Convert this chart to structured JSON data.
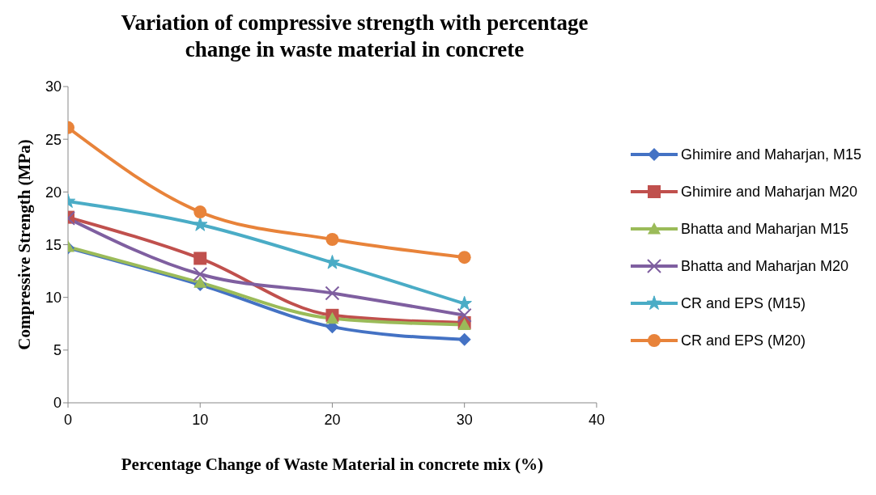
{
  "chart_data": {
    "type": "line",
    "title": "Variation of compressive strength with percentage change in waste material in concrete",
    "xlabel": "Percentage Change of Waste Material in concrete mix (%)",
    "ylabel": "Compressive Strength (MPa)",
    "x": [
      0,
      10,
      20,
      30
    ],
    "xlim": [
      0,
      40
    ],
    "xticks": [
      0,
      10,
      20,
      30,
      40
    ],
    "ylim": [
      0,
      30
    ],
    "yticks": [
      0,
      5,
      10,
      15,
      20,
      25,
      30
    ],
    "grid": false,
    "legend": "right",
    "series": [
      {
        "name": "Ghimire and Maharjan, M15",
        "color": "#4472c4",
        "marker": "diamond",
        "values": [
          14.7,
          11.2,
          7.2,
          6.0
        ]
      },
      {
        "name": "Ghimire and Maharjan M20",
        "color": "#c0504d",
        "marker": "square",
        "values": [
          17.6,
          13.7,
          8.3,
          7.6
        ]
      },
      {
        "name": "Bhatta and Maharjan M15",
        "color": "#9bbb59",
        "marker": "triangle",
        "values": [
          14.8,
          11.4,
          8.0,
          7.4
        ]
      },
      {
        "name": "Bhatta and Maharjan M20",
        "color": "#7f5fa0",
        "marker": "cross",
        "values": [
          17.5,
          12.2,
          10.4,
          8.3
        ]
      },
      {
        "name": "CR and EPS (M15)",
        "color": "#4aacc6",
        "marker": "star",
        "values": [
          19.1,
          16.9,
          13.3,
          9.4
        ]
      },
      {
        "name": "CR and EPS (M20)",
        "color": "#e8833a",
        "marker": "circle",
        "values": [
          26.1,
          18.1,
          15.5,
          13.8
        ]
      }
    ]
  }
}
